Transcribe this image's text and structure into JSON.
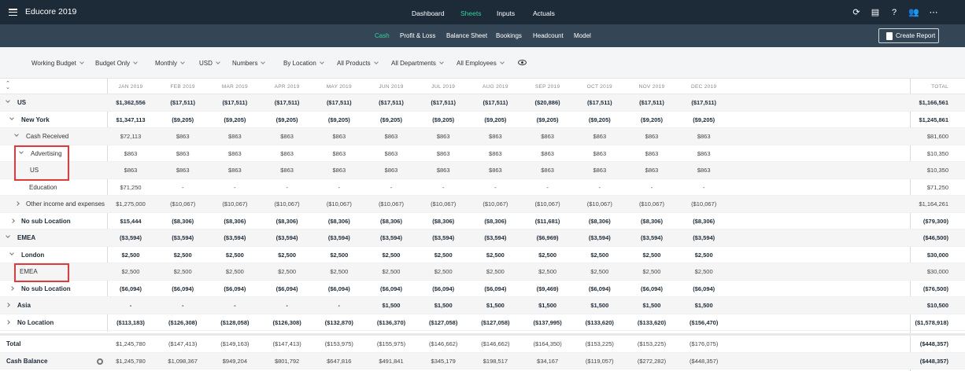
{
  "app": {
    "title": "Educore 2019"
  },
  "topnav": [
    "Dashboard",
    "Sheets",
    "Inputs",
    "Actuals"
  ],
  "topnav_active": "Sheets",
  "subnav": [
    "Cash",
    "Profit & Loss",
    "Balance Sheet",
    "Bookings",
    "Headcount",
    "Model"
  ],
  "subnav_active": "Cash",
  "create_report_label": "Create Report",
  "filters": [
    "Working Budget",
    "Budget Only",
    "Monthly",
    "USD",
    "Numbers",
    "By Location",
    "All Products",
    "All Departments",
    "All Employees"
  ],
  "columns": [
    "JAN 2019",
    "FEB 2019",
    "MAR 2019",
    "APR 2019",
    "MAY 2019",
    "JUN 2019",
    "JUL 2019",
    "AUG 2019",
    "SEP 2019",
    "OCT 2019",
    "NOV 2019",
    "DEC 2019"
  ],
  "total_header": "TOTAL",
  "colors": {
    "topbar": "#1d2b38",
    "subbar": "#344656",
    "accent": "#2fd39a",
    "highlight": "#e03a3a"
  },
  "rows": [
    {
      "label": "US",
      "bold": true,
      "arrow": "down",
      "values": [
        "$1,362,556",
        "($17,511)",
        "($17,511)",
        "($17,511)",
        "($17,511)",
        "($17,511)",
        "($17,511)",
        "($17,511)",
        "($20,886)",
        "($17,511)",
        "($17,511)",
        "($17,511)"
      ],
      "total": "$1,166,561"
    },
    {
      "label": "New York",
      "bold": true,
      "arrow": "down",
      "values": [
        "$1,347,113",
        "($9,205)",
        "($9,205)",
        "($9,205)",
        "($9,205)",
        "($9,205)",
        "($9,205)",
        "($9,205)",
        "($9,205)",
        "($9,205)",
        "($9,205)",
        "($9,205)"
      ],
      "total": "$1,245,861"
    },
    {
      "label": "Cash Received",
      "bold": false,
      "arrow": "down",
      "values": [
        "$72,113",
        "$863",
        "$863",
        "$863",
        "$863",
        "$863",
        "$863",
        "$863",
        "$863",
        "$863",
        "$863",
        "$863"
      ],
      "total": "$81,600"
    },
    {
      "label": "Advertising",
      "bold": false,
      "arrow": "down",
      "values": [
        "$863",
        "$863",
        "$863",
        "$863",
        "$863",
        "$863",
        "$863",
        "$863",
        "$863",
        "$863",
        "$863",
        "$863"
      ],
      "total": "$10,350"
    },
    {
      "label": "US",
      "bold": false,
      "arrow": "",
      "values": [
        "$863",
        "$863",
        "$863",
        "$863",
        "$863",
        "$863",
        "$863",
        "$863",
        "$863",
        "$863",
        "$863",
        "$863"
      ],
      "total": "$10,350"
    },
    {
      "label": "Education",
      "bold": false,
      "arrow": "",
      "values": [
        "$71,250",
        "-",
        "-",
        "-",
        "-",
        "-",
        "-",
        "-",
        "-",
        "-",
        "-",
        "-"
      ],
      "total": "$71,250"
    },
    {
      "label": "Other income and expenses",
      "bold": false,
      "arrow": "right",
      "values": [
        "$1,275,000",
        "($10,067)",
        "($10,067)",
        "($10,067)",
        "($10,067)",
        "($10,067)",
        "($10,067)",
        "($10,067)",
        "($10,067)",
        "($10,067)",
        "($10,067)",
        "($10,067)"
      ],
      "total": "$1,164,261"
    },
    {
      "label": "No sub Location",
      "bold": true,
      "arrow": "right",
      "values": [
        "$15,444",
        "($8,306)",
        "($8,306)",
        "($8,306)",
        "($8,306)",
        "($8,306)",
        "($8,306)",
        "($8,306)",
        "($11,681)",
        "($8,306)",
        "($8,306)",
        "($8,306)"
      ],
      "total": "($79,300)"
    },
    {
      "label": "EMEA",
      "bold": true,
      "arrow": "down",
      "values": [
        "($3,594)",
        "($3,594)",
        "($3,594)",
        "($3,594)",
        "($3,594)",
        "($3,594)",
        "($3,594)",
        "($3,594)",
        "($6,969)",
        "($3,594)",
        "($3,594)",
        "($3,594)"
      ],
      "total": "($46,500)"
    },
    {
      "label": "London",
      "bold": true,
      "arrow": "down",
      "values": [
        "$2,500",
        "$2,500",
        "$2,500",
        "$2,500",
        "$2,500",
        "$2,500",
        "$2,500",
        "$2,500",
        "$2,500",
        "$2,500",
        "$2,500",
        "$2,500"
      ],
      "total": "$30,000"
    },
    {
      "label": "EMEA",
      "bold": false,
      "arrow": "",
      "values": [
        "$2,500",
        "$2,500",
        "$2,500",
        "$2,500",
        "$2,500",
        "$2,500",
        "$2,500",
        "$2,500",
        "$2,500",
        "$2,500",
        "$2,500",
        "$2,500"
      ],
      "total": "$30,000"
    },
    {
      "label": "No sub Location",
      "bold": true,
      "arrow": "right",
      "values": [
        "($6,094)",
        "($6,094)",
        "($6,094)",
        "($6,094)",
        "($6,094)",
        "($6,094)",
        "($6,094)",
        "($6,094)",
        "($9,469)",
        "($6,094)",
        "($6,094)",
        "($6,094)"
      ],
      "total": "($76,500)"
    },
    {
      "label": "Asia",
      "bold": true,
      "arrow": "right",
      "values": [
        "-",
        "-",
        "-",
        "-",
        "-",
        "$1,500",
        "$1,500",
        "$1,500",
        "$1,500",
        "$1,500",
        "$1,500",
        "$1,500"
      ],
      "total": "$10,500"
    },
    {
      "label": "No Location",
      "bold": true,
      "arrow": "right",
      "values": [
        "($113,183)",
        "($126,308)",
        "($128,058)",
        "($126,308)",
        "($132,870)",
        "($136,370)",
        "($127,058)",
        "($127,058)",
        "($137,995)",
        "($133,620)",
        "($133,620)",
        "($156,470)"
      ],
      "total": "($1,578,918)"
    }
  ],
  "footer_rows": [
    {
      "label": "Total",
      "values": [
        "$1,245,780",
        "($147,413)",
        "($149,163)",
        "($147,413)",
        "($153,975)",
        "($155,975)",
        "($146,662)",
        "($146,662)",
        "($164,350)",
        "($153,225)",
        "($153,225)",
        "($176,075)"
      ],
      "total": "($448,357)"
    },
    {
      "label": "Cash Balance",
      "values": [
        "$1,245,780",
        "$1,098,367",
        "$949,204",
        "$801,792",
        "$647,816",
        "$491,841",
        "$345,179",
        "$198,517",
        "$34,167",
        "($119,057)",
        "($272,282)",
        "($448,357)"
      ],
      "total": "($448,357)"
    }
  ]
}
